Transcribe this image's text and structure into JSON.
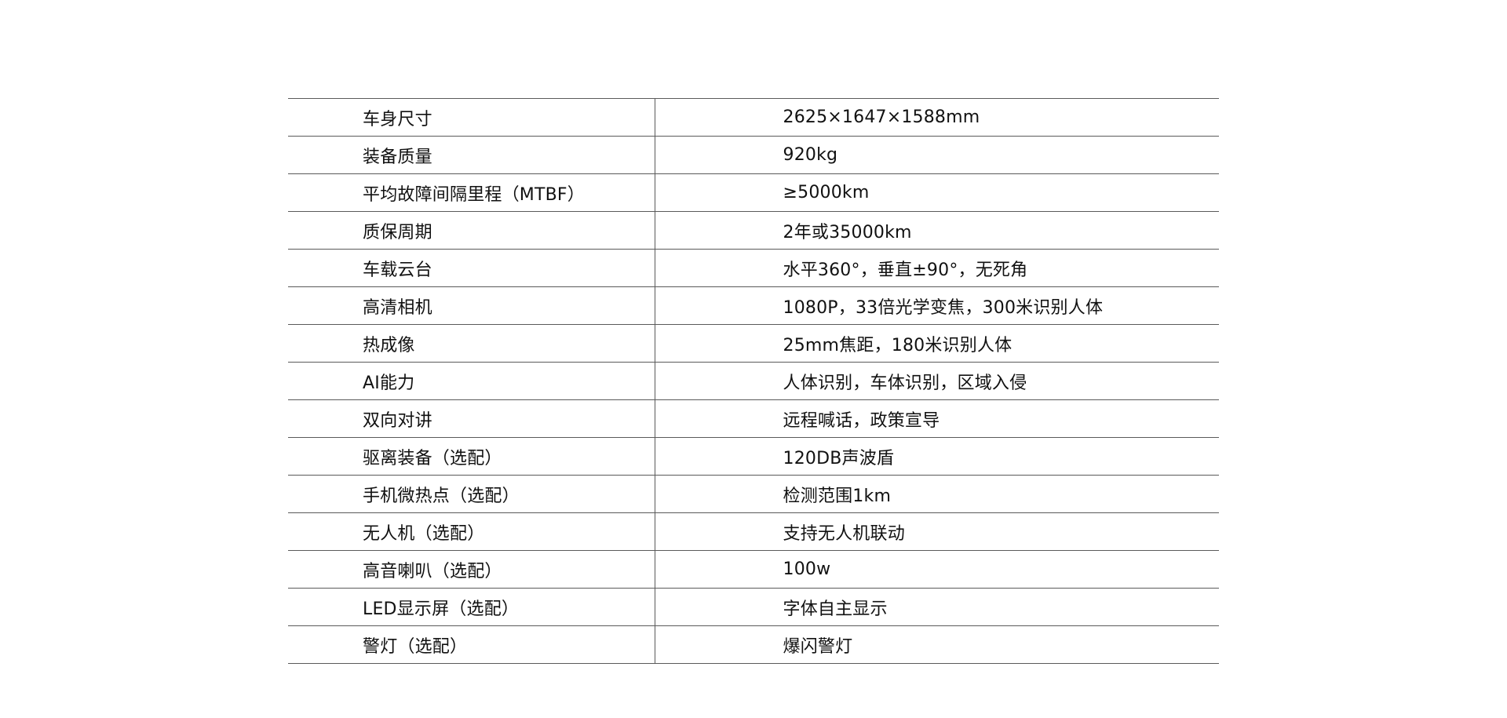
{
  "specs": [
    {
      "label": "车身尺寸",
      "value": "2625×1647×1588mm"
    },
    {
      "label": "装备质量",
      "value": "920kg"
    },
    {
      "label": "平均故障间隔里程（MTBF）",
      "value": "≥5000km"
    },
    {
      "label": "质保周期",
      "value": "2年或35000km"
    },
    {
      "label": "车载云台",
      "value": "水平360°，垂直±90°，无死角"
    },
    {
      "label": "高清相机",
      "value": "1080P，33倍光学变焦，300米识别人体"
    },
    {
      "label": "热成像",
      "value": "25mm焦距，180米识别人体"
    },
    {
      "label": "AI能力",
      "value": "人体识别，车体识别，区域入侵"
    },
    {
      "label": "双向对讲",
      "value": "远程喊话，政策宣导"
    },
    {
      "label": "驱离装备（选配）",
      "value": "120DB声波盾"
    },
    {
      "label": "手机微热点（选配）",
      "value": "检测范围1km"
    },
    {
      "label": "无人机（选配）",
      "value": "支持无人机联动"
    },
    {
      "label": "高音喇叭（选配）",
      "value": "100w"
    },
    {
      "label": "LED显示屏（选配）",
      "value": "字体自主显示"
    },
    {
      "label": "警灯（选配）",
      "value": "爆闪警灯"
    }
  ]
}
